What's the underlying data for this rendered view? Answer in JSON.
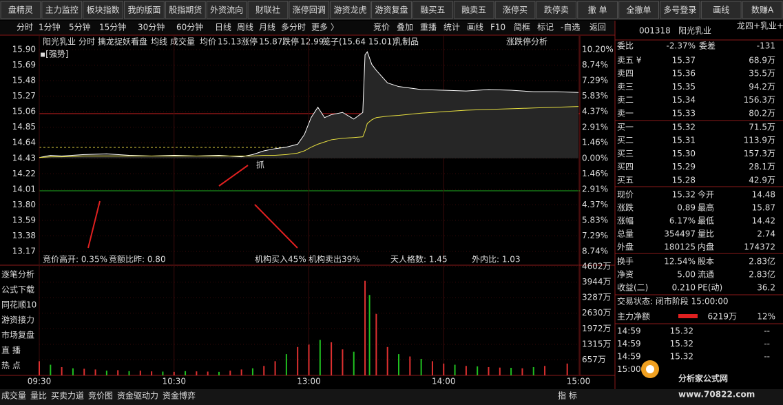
{
  "toolbar": [
    "盘精灵",
    "主力监控",
    "板块指数",
    "我的版面",
    "股指期货",
    "外资流向",
    "财联社",
    "涨停回调",
    "游资龙虎",
    "游资复盘",
    "融买五",
    "融卖五",
    "涨停买",
    "跌停卖",
    "撤 单",
    "全撤单",
    "多号登录",
    "画线",
    "数赚A"
  ],
  "period_tabs": [
    "分时",
    "1分钟",
    "5分钟",
    "15分钟",
    "30分钟",
    "60分钟",
    "日线",
    "周线",
    "月线",
    "多分时",
    "更多 〉"
  ],
  "right_tabs": [
    "竞价",
    "叠加",
    "重播",
    "统计",
    "画线",
    "F10",
    "简框",
    "标记",
    "-自选",
    "返回"
  ],
  "header": {
    "name": "阳光乳业",
    "mode": "分时",
    "formula": "擒龙捉妖看盘",
    "avg_label": "均线",
    "vol_label": "成交量",
    "avg_price_label": "均价",
    "avg_price": "15.13",
    "limit_up_label": "涨停",
    "limit_up": "15.87",
    "limit_down_label": "跌停",
    "limit_down": "12.99",
    "cage": "笼子(15.64 15.01)",
    "sector": "乳制品",
    "analysis": "涨跌停分析",
    "strength": "▪[强势]",
    "signal": "抓"
  },
  "indicators": {
    "open_gap": "竞价高开: 0.35%",
    "amount_ratio": "竞额比昨: 0.80",
    "inst_buy": "机构买入45%",
    "inst_sell": "机构卖出39%",
    "tianren": "天人格数: 1.45",
    "out_in": "外内比: 1.03"
  },
  "side_buttons": [
    "逐笔分析",
    "公式下载",
    "同花顺10",
    "游资接力",
    "市场复盘",
    "直  播",
    "热  点"
  ],
  "bottom_tabs": [
    "成交量",
    "量比",
    "买卖力道",
    "竞价图",
    "资金驱动力",
    "资金博弈"
  ],
  "bottom_right": "指 标",
  "chart_data": {
    "type": "line",
    "x": [
      0,
      5,
      10,
      20,
      30,
      40,
      50,
      60,
      70,
      80,
      90,
      95,
      100,
      105,
      110,
      115,
      118,
      121,
      124,
      127,
      130,
      135,
      140,
      144,
      145,
      146,
      148,
      150,
      155,
      160,
      170,
      180,
      190,
      200,
      210,
      220,
      230,
      240
    ],
    "xlim": [
      0,
      240
    ],
    "xticks": [
      {
        "value": 0,
        "label": "09:30"
      },
      {
        "value": 60,
        "label": "10:30"
      },
      {
        "value": 120,
        "label": "13:00"
      },
      {
        "value": 180,
        "label": "14:00"
      },
      {
        "value": 240,
        "label": "15:00"
      }
    ],
    "series": [
      {
        "name": "分时",
        "color": "#ffffff",
        "values": [
          14.44,
          14.47,
          14.46,
          14.48,
          14.49,
          14.47,
          14.46,
          14.47,
          14.46,
          14.47,
          14.45,
          14.48,
          14.53,
          14.56,
          14.58,
          14.62,
          14.75,
          14.98,
          15.12,
          14.98,
          15.02,
          15.05,
          14.96,
          15.05,
          15.83,
          15.87,
          15.7,
          15.62,
          15.45,
          15.4,
          15.36,
          15.35,
          15.34,
          15.36,
          15.35,
          15.33,
          15.33,
          15.32
        ]
      },
      {
        "name": "均线",
        "color": "#e8e040",
        "values": [
          14.44,
          14.45,
          14.45,
          14.46,
          14.46,
          14.46,
          14.46,
          14.46,
          14.46,
          14.46,
          14.46,
          14.46,
          14.47,
          14.47,
          14.48,
          14.5,
          14.53,
          14.58,
          14.62,
          14.65,
          14.68,
          14.7,
          14.71,
          14.72,
          14.8,
          14.9,
          14.95,
          14.98,
          15.0,
          15.01,
          15.04,
          15.06,
          15.08,
          15.09,
          15.1,
          15.11,
          15.12,
          15.13
        ]
      }
    ],
    "ylim": [
      13.17,
      15.9
    ],
    "yticks": [
      {
        "value": 15.9,
        "label": "15.90"
      },
      15.69,
      15.48,
      15.27,
      15.06,
      14.85,
      14.64,
      14.43,
      14.22,
      14.01,
      {
        "value": 13.8,
        "label": "13.80"
      },
      13.59,
      13.38,
      13.17
    ],
    "y2lim": [
      -10.2,
      10.2
    ],
    "y2ticks": [
      {
        "value": 10.2,
        "label": "10.20%"
      },
      {
        "value": 8.74,
        "label": "8.74%"
      },
      {
        "value": 7.29,
        "label": "7.29%"
      },
      {
        "value": 5.83,
        "label": "5.83%"
      },
      {
        "value": 4.37,
        "label": "4.37%"
      },
      {
        "value": 2.91,
        "label": "2.91%"
      },
      {
        "value": 1.46,
        "label": "1.46%"
      },
      {
        "value": 0,
        "label": "0.00%"
      },
      {
        "value": -1.46,
        "label": "1.46%"
      },
      {
        "value": -2.91,
        "label": "2.91%"
      },
      {
        "value": -4.37,
        "label": "4.37%"
      },
      {
        "value": -5.83,
        "label": "5.83%"
      },
      {
        "value": -7.29,
        "label": "7.29%"
      },
      {
        "value": -8.74,
        "label": "8.74%"
      }
    ],
    "volume": {
      "x": [
        0,
        5,
        10,
        15,
        20,
        25,
        30,
        35,
        40,
        45,
        50,
        55,
        60,
        65,
        70,
        75,
        80,
        85,
        90,
        95,
        100,
        105,
        110,
        115,
        120,
        125,
        130,
        135,
        140,
        145,
        147,
        150,
        155,
        160,
        165,
        170,
        175,
        180,
        185,
        190,
        195,
        200,
        205,
        210,
        215,
        220,
        225,
        235
      ],
      "values": [
        600,
        450,
        350,
        300,
        280,
        250,
        200,
        220,
        180,
        200,
        170,
        160,
        150,
        180,
        170,
        160,
        150,
        200,
        250,
        300,
        400,
        600,
        900,
        1200,
        1300,
        1500,
        1400,
        1100,
        1000,
        4000,
        3400,
        2600,
        1200,
        900,
        800,
        700,
        600,
        500,
        450,
        400,
        380,
        350,
        330,
        320,
        300,
        350,
        400,
        500
      ],
      "colors": [
        "#e03030",
        "#20c020",
        "#e03030",
        "#20c020",
        "#e03030",
        "#e03030",
        "#20c020",
        "#e03030",
        "#20c020",
        "#e03030",
        "#e03030",
        "#20c020",
        "#e03030",
        "#20c020",
        "#e03030",
        "#e03030",
        "#20c020",
        "#e03030",
        "#e03030",
        "#20c020",
        "#e03030",
        "#e03030",
        "#20c020",
        "#e03030",
        "#e03030",
        "#20c020",
        "#e03030",
        "#e03030",
        "#20c020",
        "#e03030",
        "#20c020",
        "#e03030",
        "#e03030",
        "#20c020",
        "#e03030",
        "#20c020",
        "#e03030",
        "#e03030",
        "#20c020",
        "#e03030",
        "#20c020",
        "#e03030",
        "#e03030",
        "#20c020",
        "#e03030",
        "#20c020",
        "#e03030",
        "#e03030"
      ],
      "ylim": [
        0,
        4602
      ],
      "yticks": [
        {
          "value": 4602,
          "label": "4602万"
        },
        {
          "value": 3944,
          "label": "3944万"
        },
        {
          "value": 3287,
          "label": "3287万"
        },
        {
          "value": 2630,
          "label": "2630万"
        },
        {
          "value": 1972,
          "label": "1972万"
        },
        {
          "value": 1315,
          "label": "1315万"
        },
        {
          "value": 657,
          "label": "657万"
        }
      ]
    }
  },
  "quote": {
    "code": "001318",
    "name": "阳光乳业",
    "concept": "龙四+乳业+参股",
    "ratio": [
      "委比",
      "-2.37%",
      "委差",
      "-131"
    ],
    "sell": [
      [
        "卖五 ¥",
        "15.37",
        "68.9万"
      ],
      [
        "卖四",
        "15.36",
        "35.5万"
      ],
      [
        "卖三",
        "15.35",
        "94.2万"
      ],
      [
        "卖二",
        "15.34",
        "156.3万"
      ],
      [
        "卖一",
        "15.33",
        "80.2万"
      ]
    ],
    "buy": [
      [
        "买一",
        "15.32",
        "71.5万"
      ],
      [
        "买二",
        "15.31",
        "113.9万"
      ],
      [
        "买三",
        "15.30",
        "157.3万"
      ],
      [
        "买四",
        "15.29",
        "28.1万"
      ],
      [
        "买五",
        "15.28",
        "42.9万"
      ]
    ],
    "stats": [
      [
        "现价",
        "15.32",
        "今开",
        "14.48"
      ],
      [
        "涨跌",
        "0.89",
        "最高",
        "15.87"
      ],
      [
        "涨幅",
        "6.17%",
        "最低",
        "14.42"
      ],
      [
        "总量",
        "354497",
        "量比",
        "2.74"
      ],
      [
        "外盘",
        "180125",
        "内盘",
        "174372"
      ],
      [
        "换手",
        "12.54%",
        "股本",
        "2.83亿"
      ],
      [
        "净资",
        "5.00",
        "流通",
        "2.83亿"
      ],
      [
        "收益(二)",
        "0.210",
        "PE(动)",
        "36.2"
      ]
    ],
    "status": "交易状态: 闭市阶段 15:00:00",
    "flow": [
      "主力净额",
      "6219万",
      "12%"
    ],
    "ticks": [
      [
        "14:59",
        "15.32",
        "--"
      ],
      [
        "14:59",
        "15.32",
        "--"
      ],
      [
        "14:59",
        "15.32",
        "--"
      ],
      [
        "15:00",
        "",
        ""
      ]
    ],
    "logo": "分析家公式网",
    "site": "www.70822.com"
  }
}
